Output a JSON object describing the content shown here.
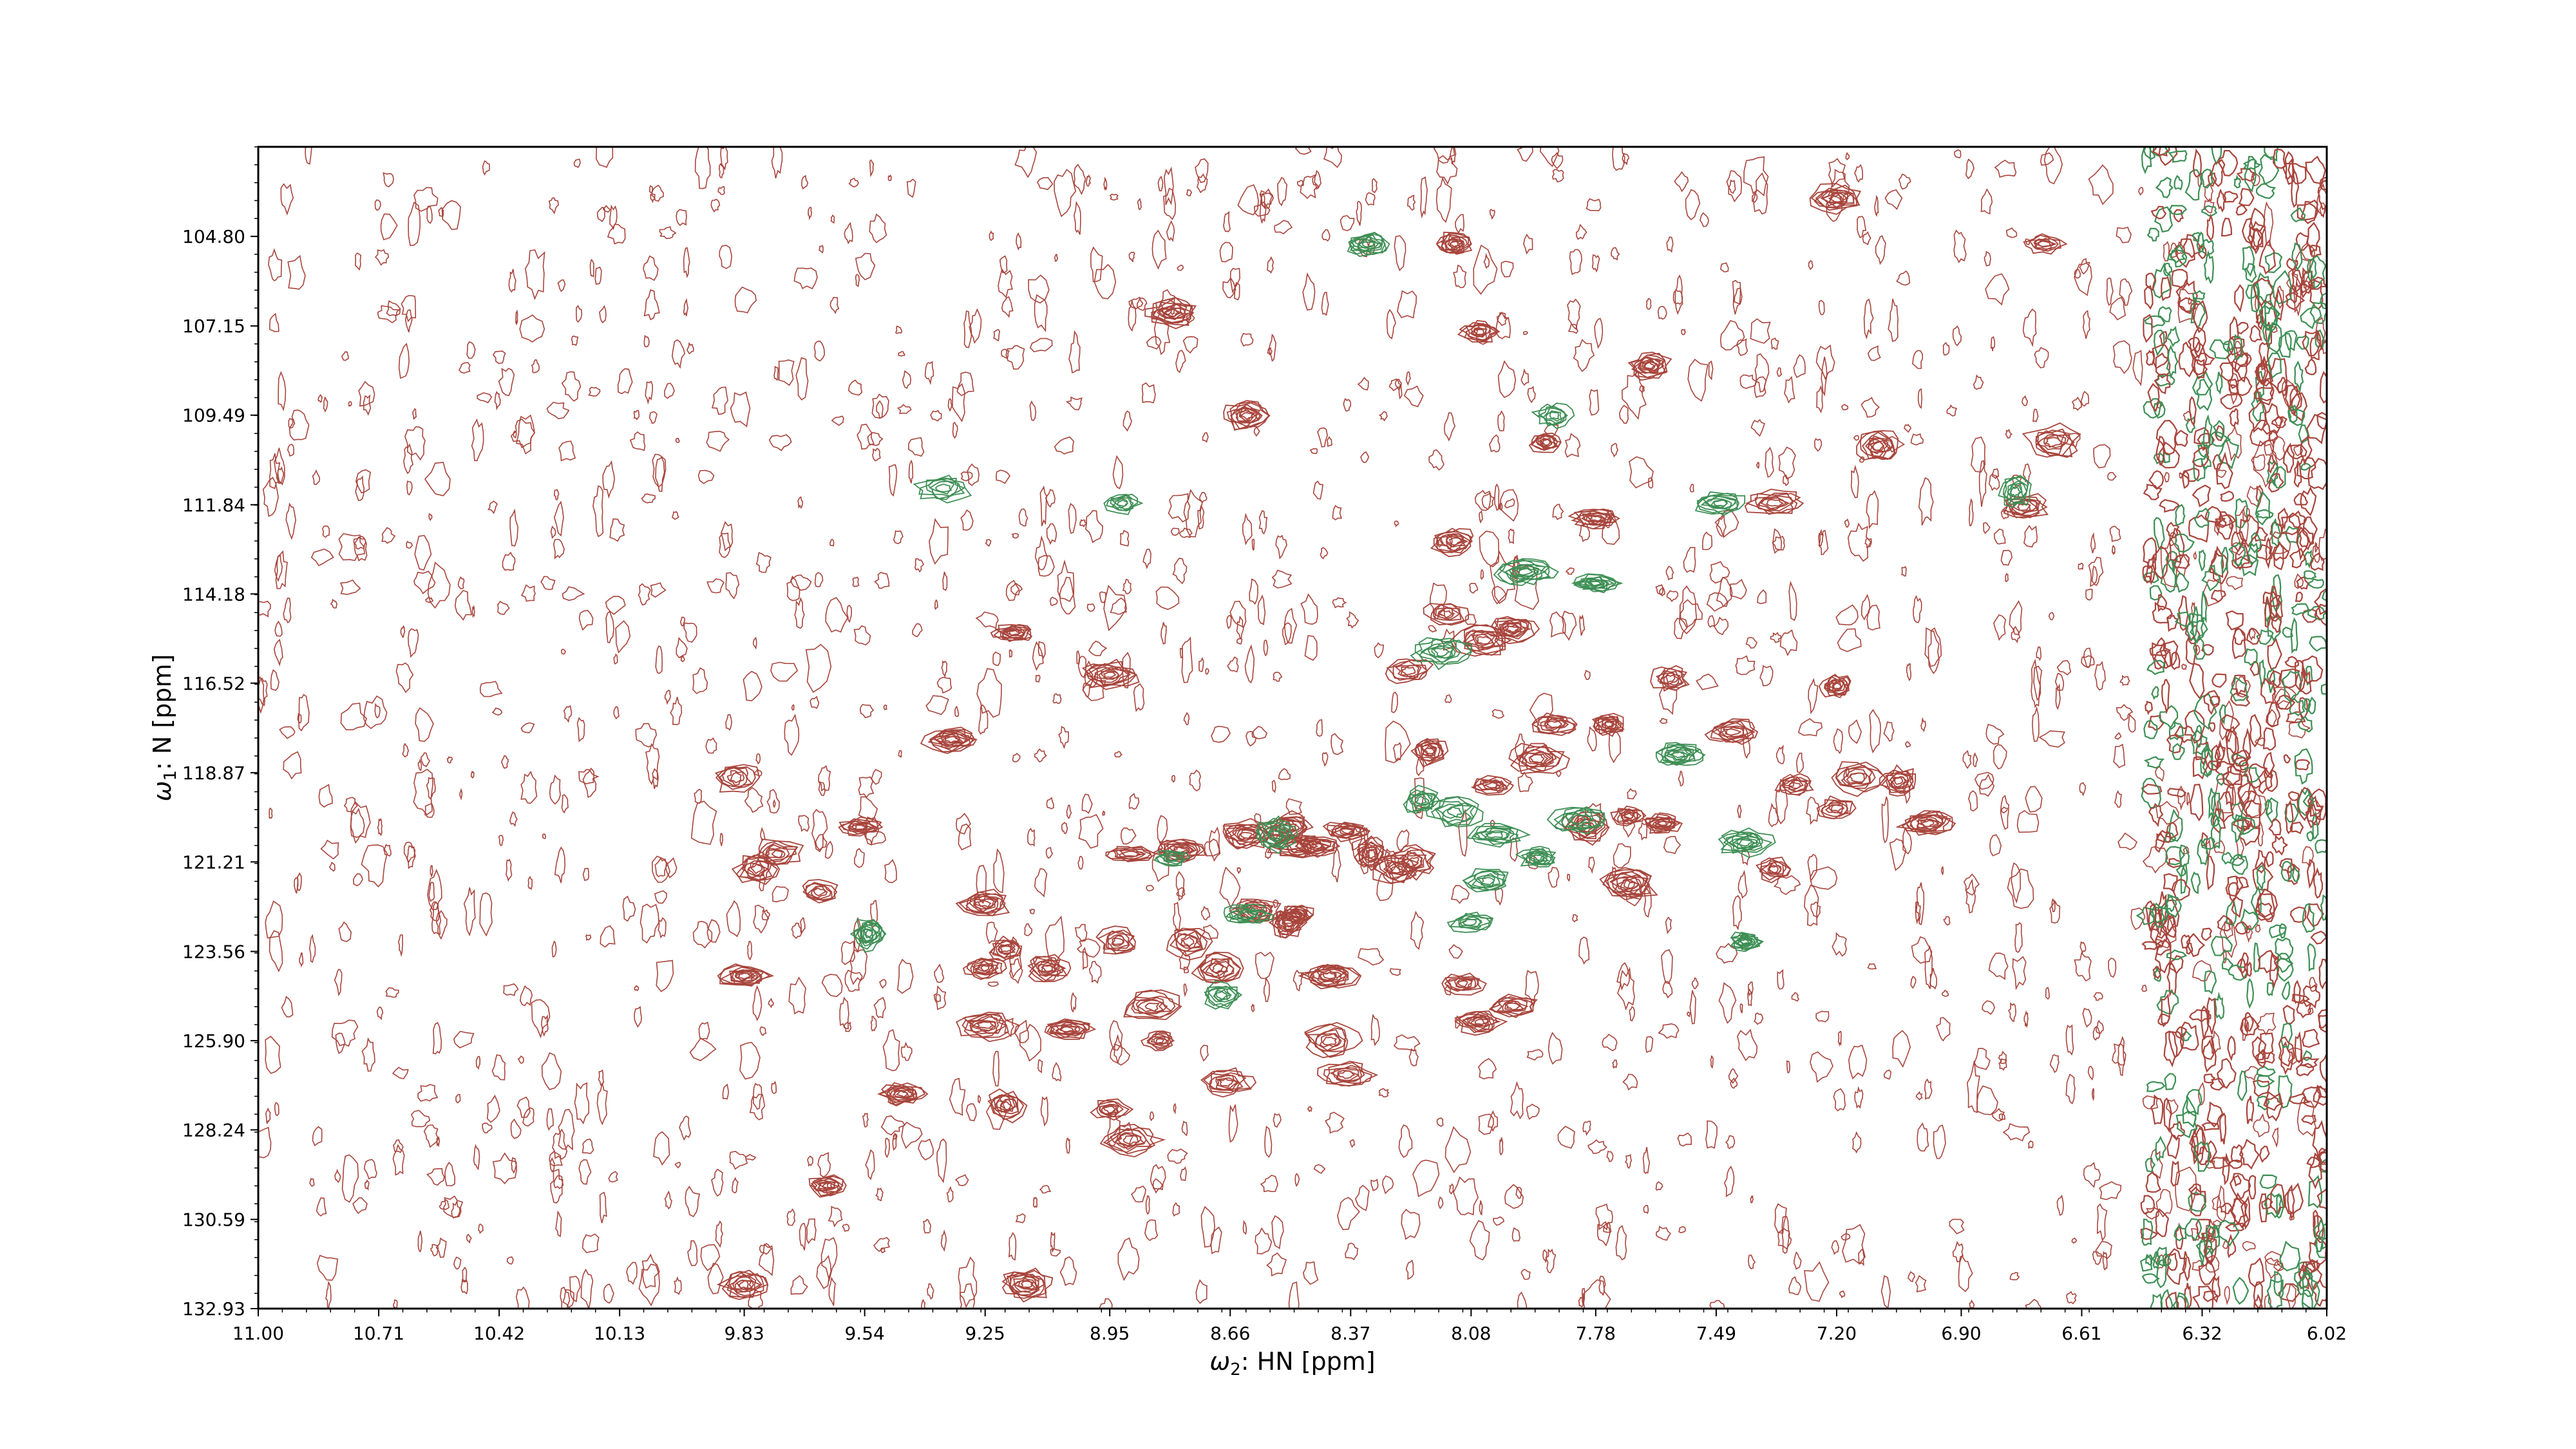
{
  "chart_data": {
    "type": "contour",
    "xlabel_symbol": "ω",
    "xlabel_sub": "2",
    "xlabel_rest": ": HN [ppm]",
    "ylabel_symbol": "ω",
    "ylabel_sub": "1",
    "ylabel_rest": ": N [ppm]",
    "xlim": [
      11.0,
      6.02
    ],
    "ylim": [
      132.93,
      102.45
    ],
    "x_ticks": [
      "11.00",
      "10.71",
      "10.42",
      "10.13",
      "9.83",
      "9.54",
      "9.25",
      "8.95",
      "8.66",
      "8.37",
      "8.08",
      "7.78",
      "7.49",
      "7.20",
      "6.90",
      "6.61",
      "6.32",
      "6.02"
    ],
    "y_ticks": [
      "104.80",
      "107.15",
      "109.49",
      "111.84",
      "114.18",
      "116.52",
      "118.87",
      "121.21",
      "123.56",
      "125.90",
      "128.24",
      "130.59",
      "132.93"
    ],
    "colors": {
      "positive": "#a8453c",
      "negative": "#3e8f55"
    },
    "positive_peaks": [
      [
        9.83,
        132.3
      ],
      [
        9.15,
        132.3
      ],
      [
        9.63,
        129.7
      ],
      [
        8.9,
        128.5
      ],
      [
        8.95,
        127.7
      ],
      [
        9.2,
        127.6
      ],
      [
        9.45,
        127.3
      ],
      [
        8.67,
        127.0
      ],
      [
        8.38,
        126.8
      ],
      [
        8.42,
        125.9
      ],
      [
        8.83,
        125.9
      ],
      [
        9.05,
        125.6
      ],
      [
        9.25,
        125.5
      ],
      [
        8.85,
        125.0
      ],
      [
        8.06,
        125.4
      ],
      [
        7.98,
        125.0
      ],
      [
        8.1,
        124.4
      ],
      [
        8.42,
        124.2
      ],
      [
        8.69,
        124.0
      ],
      [
        9.1,
        124.0
      ],
      [
        9.25,
        124.0
      ],
      [
        9.83,
        124.2
      ],
      [
        9.2,
        123.5
      ],
      [
        8.93,
        123.3
      ],
      [
        8.76,
        123.3
      ],
      [
        8.52,
        122.8
      ],
      [
        8.5,
        122.6
      ],
      [
        8.6,
        122.5
      ],
      [
        9.25,
        122.3
      ],
      [
        9.65,
        122.0
      ],
      [
        9.8,
        121.4
      ],
      [
        9.55,
        120.3
      ],
      [
        8.78,
        120.9
      ],
      [
        8.9,
        121.0
      ],
      [
        8.5,
        120.8
      ],
      [
        8.62,
        120.5
      ],
      [
        8.52,
        120.3
      ],
      [
        8.38,
        120.4
      ],
      [
        8.32,
        121.0
      ],
      [
        8.26,
        121.4
      ],
      [
        7.7,
        121.8
      ],
      [
        7.35,
        121.4
      ],
      [
        7.3,
        119.2
      ],
      [
        7.15,
        119.0
      ],
      [
        7.05,
        119.1
      ],
      [
        6.98,
        120.2
      ],
      [
        7.2,
        119.8
      ],
      [
        7.7,
        120.0
      ],
      [
        7.8,
        120.3
      ],
      [
        8.03,
        119.2
      ],
      [
        7.92,
        118.5
      ],
      [
        8.18,
        118.3
      ],
      [
        7.88,
        117.6
      ],
      [
        7.75,
        117.6
      ],
      [
        7.6,
        116.4
      ],
      [
        7.45,
        117.8
      ],
      [
        7.2,
        116.6
      ],
      [
        8.23,
        116.2
      ],
      [
        8.05,
        115.4
      ],
      [
        7.98,
        115.1
      ],
      [
        8.14,
        114.7
      ],
      [
        9.18,
        115.2
      ],
      [
        8.95,
        116.3
      ],
      [
        9.33,
        118.0
      ],
      [
        9.85,
        119.0
      ],
      [
        9.75,
        121.0
      ],
      [
        8.12,
        112.8
      ],
      [
        7.78,
        112.2
      ],
      [
        7.35,
        111.8
      ],
      [
        6.75,
        111.9
      ],
      [
        7.9,
        110.2
      ],
      [
        7.1,
        110.3
      ],
      [
        6.68,
        110.2
      ],
      [
        8.62,
        109.5
      ],
      [
        7.65,
        108.2
      ],
      [
        8.06,
        107.3
      ],
      [
        8.8,
        106.8
      ],
      [
        8.12,
        105.0
      ],
      [
        7.2,
        103.8
      ],
      [
        6.7,
        105.0
      ],
      [
        8.22,
        121.2
      ],
      [
        8.45,
        120.8
      ],
      [
        7.62,
        120.2
      ]
    ],
    "negative_peaks": [
      [
        9.35,
        111.4
      ],
      [
        8.92,
        111.8
      ],
      [
        7.88,
        109.5
      ],
      [
        7.95,
        113.6
      ],
      [
        7.78,
        113.9
      ],
      [
        7.48,
        111.8
      ],
      [
        6.77,
        111.5
      ],
      [
        8.33,
        105.0
      ],
      [
        8.2,
        119.6
      ],
      [
        8.12,
        119.9
      ],
      [
        8.02,
        120.5
      ],
      [
        7.92,
        121.1
      ],
      [
        7.82,
        120.1
      ],
      [
        7.42,
        120.7
      ],
      [
        7.42,
        123.3
      ],
      [
        8.68,
        124.7
      ],
      [
        9.53,
        123.1
      ],
      [
        8.04,
        121.7
      ],
      [
        8.08,
        122.8
      ],
      [
        8.62,
        122.6
      ],
      [
        8.8,
        121.1
      ],
      [
        7.58,
        118.4
      ],
      [
        8.15,
        115.7
      ],
      [
        8.55,
        120.5
      ]
    ]
  }
}
